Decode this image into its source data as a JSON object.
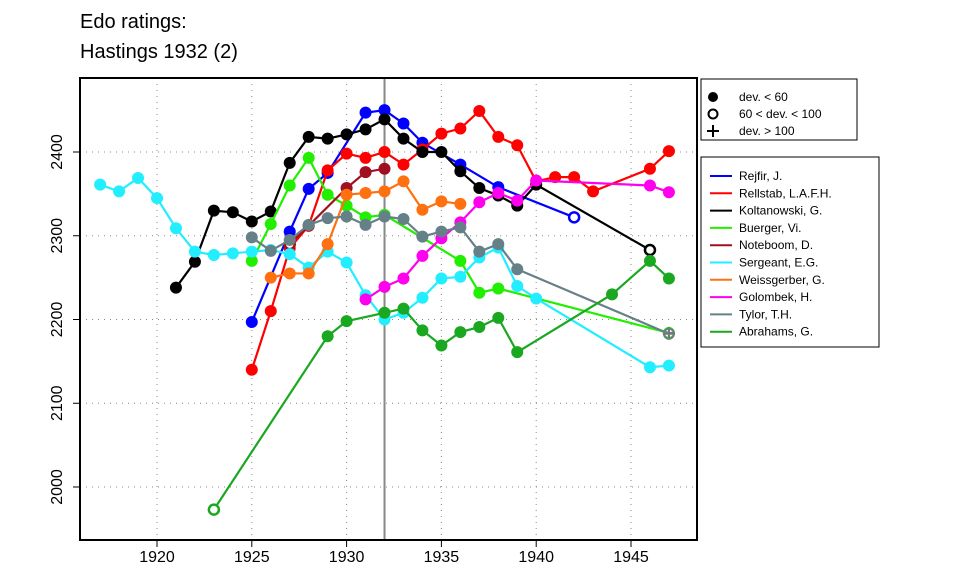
{
  "chart_data": {
    "type": "line",
    "title": [
      "Edo ratings:",
      "Hastings 1932 (2)"
    ],
    "xlim": [
      1916.3,
      1948.8
    ],
    "ylim": [
      1948,
      2492
    ],
    "xticks": [
      1920,
      1925,
      1930,
      1935,
      1940,
      1945
    ],
    "yticks": [
      2000,
      2100,
      2200,
      2300,
      2400
    ],
    "highlight_year": 1932,
    "marker_legend": [
      {
        "label": "dev. < 60",
        "marker": "solid"
      },
      {
        "label": "60 < dev. < 100",
        "marker": "open"
      },
      {
        "label": "dev. > 100",
        "marker": "plus"
      }
    ],
    "series": [
      {
        "name": "Rejfir, J.",
        "color": "#0000ff",
        "points": [
          [
            1925,
            2197
          ],
          [
            1927,
            2305
          ],
          [
            1928,
            2356
          ],
          [
            1929,
            2375
          ],
          [
            1931,
            2447
          ],
          [
            1932,
            2450
          ],
          [
            1933,
            2434
          ],
          [
            1934,
            2411
          ],
          [
            1936,
            2385
          ],
          [
            1938,
            2358
          ],
          [
            1942,
            2322,
            "o"
          ]
        ]
      },
      {
        "name": "Rellstab, L.A.F.H.",
        "color": "#ff0000",
        "points": [
          [
            1925,
            2140
          ],
          [
            1926,
            2210
          ],
          [
            1927,
            2285
          ],
          [
            1928,
            2312
          ],
          [
            1929,
            2378
          ],
          [
            1930,
            2398
          ],
          [
            1931,
            2393
          ],
          [
            1932,
            2400
          ],
          [
            1933,
            2385
          ],
          [
            1934,
            2403
          ],
          [
            1935,
            2422
          ],
          [
            1936,
            2428
          ],
          [
            1937,
            2449
          ],
          [
            1938,
            2418
          ],
          [
            1939,
            2408
          ],
          [
            1940,
            2365
          ],
          [
            1941,
            2370
          ],
          [
            1942,
            2370
          ],
          [
            1943,
            2353
          ],
          [
            1946,
            2380
          ],
          [
            1947,
            2401
          ]
        ]
      },
      {
        "name": "Koltanowski, G.",
        "color": "#000000",
        "points": [
          [
            1921,
            2238
          ],
          [
            1922,
            2269
          ],
          [
            1923,
            2330
          ],
          [
            1924,
            2328
          ],
          [
            1925,
            2317
          ],
          [
            1926,
            2329
          ],
          [
            1927,
            2387
          ],
          [
            1928,
            2418
          ],
          [
            1929,
            2416
          ],
          [
            1930,
            2421
          ],
          [
            1931,
            2427
          ],
          [
            1932,
            2439
          ],
          [
            1933,
            2416
          ],
          [
            1934,
            2400
          ],
          [
            1935,
            2400
          ],
          [
            1936,
            2377
          ],
          [
            1937,
            2357
          ],
          [
            1938,
            2348
          ],
          [
            1939,
            2336
          ],
          [
            1940,
            2361
          ],
          [
            1946,
            2283,
            "o"
          ]
        ]
      },
      {
        "name": "Buerger, Vi.",
        "color": "#22ee00",
        "points": [
          [
            1925,
            2270
          ],
          [
            1926,
            2314
          ],
          [
            1927,
            2360
          ],
          [
            1928,
            2393
          ],
          [
            1929,
            2349
          ],
          [
            1930,
            2336
          ],
          [
            1931,
            2322
          ],
          [
            1932,
            2325
          ],
          [
            1936,
            2270
          ],
          [
            1937,
            2232
          ],
          [
            1938,
            2237
          ],
          [
            1947,
            2184,
            "p"
          ]
        ]
      },
      {
        "name": "Noteboom, D.",
        "color": "#a01020",
        "points": [
          [
            1927,
            2290,
            "o"
          ],
          [
            1928,
            2312
          ],
          [
            1930,
            2357
          ],
          [
            1931,
            2376
          ],
          [
            1932,
            2380
          ]
        ]
      },
      {
        "name": "Sergeant, E.G.",
        "color": "#22eeff",
        "points": [
          [
            1917,
            2361
          ],
          [
            1918,
            2353
          ],
          [
            1919,
            2369
          ],
          [
            1920,
            2345
          ],
          [
            1921,
            2309
          ],
          [
            1922,
            2281
          ],
          [
            1923,
            2277
          ],
          [
            1924,
            2279
          ],
          [
            1925,
            2281
          ],
          [
            1926,
            2283
          ],
          [
            1927,
            2278
          ],
          [
            1928,
            2262
          ],
          [
            1929,
            2281
          ],
          [
            1930,
            2268
          ],
          [
            1931,
            2229
          ],
          [
            1932,
            2200
          ],
          [
            1933,
            2208
          ],
          [
            1934,
            2226
          ],
          [
            1935,
            2249
          ],
          [
            1936,
            2251
          ],
          [
            1937,
            2274
          ],
          [
            1938,
            2286
          ],
          [
            1939,
            2240
          ],
          [
            1940,
            2225
          ],
          [
            1946,
            2143
          ],
          [
            1947,
            2145
          ]
        ]
      },
      {
        "name": "Weissgerber, G.",
        "color": "#ff7010",
        "points": [
          [
            1926,
            2250
          ],
          [
            1927,
            2255
          ],
          [
            1928,
            2255
          ],
          [
            1929,
            2290
          ],
          [
            1930,
            2349
          ],
          [
            1931,
            2351
          ],
          [
            1932,
            2353
          ],
          [
            1933,
            2365
          ],
          [
            1934,
            2331
          ],
          [
            1935,
            2341
          ],
          [
            1936,
            2338
          ]
        ]
      },
      {
        "name": "Golombek, H.",
        "color": "#ff00ee",
        "points": [
          [
            1931,
            2224
          ],
          [
            1932,
            2239
          ],
          [
            1933,
            2249
          ],
          [
            1934,
            2276
          ],
          [
            1935,
            2297
          ],
          [
            1936,
            2316
          ],
          [
            1937,
            2340
          ],
          [
            1938,
            2351
          ],
          [
            1939,
            2342
          ],
          [
            1940,
            2366
          ],
          [
            1946,
            2360
          ],
          [
            1947,
            2352
          ]
        ]
      },
      {
        "name": "Tylor, T.H.",
        "color": "#668088",
        "points": [
          [
            1925,
            2298
          ],
          [
            1926,
            2282
          ],
          [
            1927,
            2295
          ],
          [
            1928,
            2313
          ],
          [
            1929,
            2321
          ],
          [
            1930,
            2323
          ],
          [
            1931,
            2313
          ],
          [
            1932,
            2323
          ],
          [
            1933,
            2320
          ],
          [
            1934,
            2299
          ],
          [
            1935,
            2305
          ],
          [
            1936,
            2310
          ],
          [
            1937,
            2281
          ],
          [
            1938,
            2290
          ],
          [
            1939,
            2260
          ],
          [
            1947,
            2183,
            "p"
          ]
        ]
      },
      {
        "name": "Abrahams, G.",
        "color": "#1aa820",
        "points": [
          [
            1923,
            1973,
            "o"
          ],
          [
            1929,
            2180
          ],
          [
            1930,
            2198
          ],
          [
            1932,
            2208
          ],
          [
            1933,
            2213
          ],
          [
            1934,
            2187
          ],
          [
            1935,
            2169
          ],
          [
            1936,
            2185
          ],
          [
            1937,
            2191
          ],
          [
            1938,
            2202
          ],
          [
            1939,
            2161
          ],
          [
            1944,
            2230
          ],
          [
            1946,
            2270
          ],
          [
            1947,
            2249
          ]
        ]
      }
    ]
  }
}
